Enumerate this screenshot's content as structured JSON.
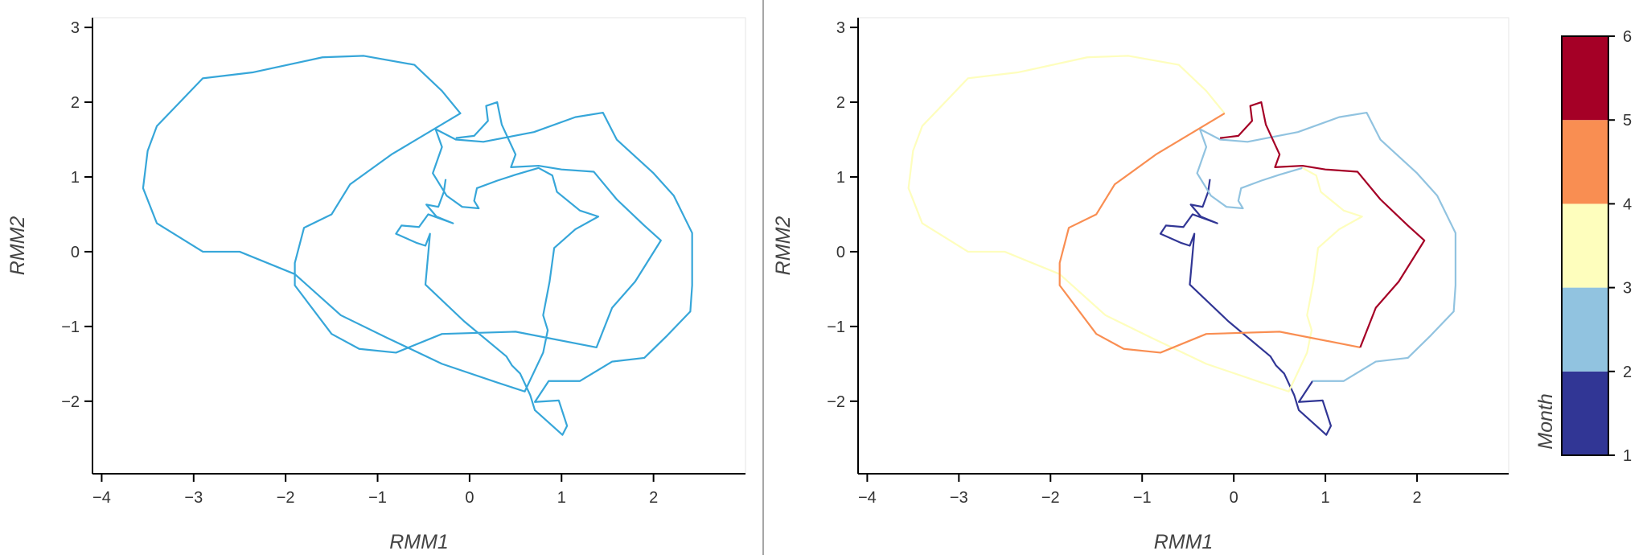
{
  "chart_data": [
    {
      "type": "line",
      "xlabel": "RMM1",
      "ylabel": "RMM2",
      "xlim": [
        -4.1,
        3.0
      ],
      "ylim": [
        -2.97,
        3.13
      ],
      "xticks": [
        {
          "value": -4,
          "label": "−4"
        },
        {
          "value": -3,
          "label": "−3"
        },
        {
          "value": -2,
          "label": "−2"
        },
        {
          "value": -1,
          "label": "−1"
        },
        0,
        1,
        2
      ],
      "yticks": [
        {
          "value": -2,
          "label": "−2"
        },
        {
          "value": -1,
          "label": "−1"
        },
        0,
        1,
        2,
        3
      ],
      "series": [
        {
          "color": "#36a6d9",
          "x": [
            -0.26,
            -0.28,
            -0.34,
            -0.47,
            -0.36,
            -0.18,
            -0.45,
            -0.55,
            -0.74,
            -0.8,
            -0.58,
            -0.48,
            -0.43,
            -0.48,
            -0.06,
            0.4,
            0.46,
            0.55,
            0.66,
            0.71,
            1.01,
            1.06,
            0.97,
            0.71,
            0.86,
            1.2,
            1.55,
            1.9,
            2.15,
            2.4,
            2.42,
            2.42,
            2.22,
            2.0,
            1.6,
            1.45,
            1.15,
            0.7,
            0.15,
            -0.15,
            -0.37,
            -0.3,
            -0.4,
            -0.25,
            -0.08,
            0.1,
            0.05,
            0.08,
            0.3,
            0.5,
            0.75,
            0.9,
            0.95,
            1.2,
            1.4,
            1.15,
            0.92,
            0.87,
            0.8,
            0.85,
            0.8,
            0.6,
            0.3,
            -0.3,
            -0.9,
            -1.4,
            -1.9,
            -2.5,
            -2.9,
            -3.4,
            -3.55,
            -3.5,
            -3.4,
            -2.9,
            -2.35,
            -1.6,
            -1.15,
            -0.6,
            -0.3,
            -0.1,
            -0.85,
            -1.3,
            -1.5,
            -1.8,
            -1.9,
            -1.9,
            -1.5,
            -1.2,
            -0.8,
            -0.3,
            0.5,
            1.38,
            1.55,
            1.8,
            2.08,
            1.9,
            1.6,
            1.35,
            1.0,
            0.75,
            0.45,
            0.5,
            0.35,
            0.3,
            0.18,
            0.2,
            0.05,
            -0.15
          ],
          "values": [
            0.97,
            0.8,
            0.6,
            0.63,
            0.47,
            0.38,
            0.5,
            0.33,
            0.35,
            0.24,
            0.12,
            0.08,
            0.24,
            -0.44,
            -0.93,
            -1.4,
            -1.52,
            -1.63,
            -1.92,
            -2.12,
            -2.45,
            -2.33,
            -1.99,
            -2.01,
            -1.73,
            -1.73,
            -1.47,
            -1.42,
            -1.12,
            -0.8,
            -0.45,
            0.25,
            0.75,
            1.05,
            1.5,
            1.86,
            1.8,
            1.6,
            1.47,
            1.5,
            1.64,
            1.4,
            1.05,
            0.75,
            0.6,
            0.58,
            0.68,
            0.85,
            0.95,
            1.03,
            1.12,
            1.02,
            0.8,
            0.55,
            0.47,
            0.3,
            0.05,
            -0.4,
            -0.85,
            -1.05,
            -1.35,
            -1.87,
            -1.75,
            -1.5,
            -1.15,
            -0.85,
            -0.3,
            0.0,
            0.0,
            0.38,
            0.85,
            1.35,
            1.68,
            2.32,
            2.4,
            2.6,
            2.62,
            2.5,
            2.15,
            1.85,
            1.3,
            0.9,
            0.5,
            0.32,
            -0.15,
            -0.45,
            -1.1,
            -1.3,
            -1.35,
            -1.1,
            -1.07,
            -1.28,
            -0.75,
            -0.4,
            0.15,
            0.35,
            0.7,
            1.07,
            1.1,
            1.15,
            1.13,
            1.3,
            1.7,
            2.0,
            1.95,
            1.75,
            1.55,
            1.52
          ]
        }
      ]
    },
    {
      "type": "line",
      "xlabel": "RMM1",
      "ylabel": "RMM2",
      "xlim": [
        -4.1,
        3.0
      ],
      "ylim": [
        -2.97,
        3.13
      ],
      "xticks": [
        {
          "value": -4,
          "label": "−4"
        },
        {
          "value": -3,
          "label": "−3"
        },
        {
          "value": -2,
          "label": "−2"
        },
        {
          "value": -1,
          "label": "−1"
        },
        0,
        1,
        2
      ],
      "yticks": [
        {
          "value": -2,
          "label": "−2"
        },
        {
          "value": -1,
          "label": "−1"
        },
        0,
        1,
        2,
        3
      ],
      "series": [
        {
          "color": "#313695",
          "x": [
            -0.26,
            -0.28,
            -0.34,
            -0.47,
            -0.36,
            -0.18,
            -0.45,
            -0.55,
            -0.74,
            -0.8,
            -0.58,
            -0.48,
            -0.43,
            -0.48,
            -0.06,
            0.4,
            0.46,
            0.55,
            0.66,
            0.71,
            1.01,
            1.06,
            0.97,
            0.71,
            0.86
          ],
          "values": [
            0.97,
            0.8,
            0.6,
            0.63,
            0.47,
            0.38,
            0.5,
            0.33,
            0.35,
            0.24,
            0.12,
            0.08,
            0.24,
            -0.44,
            -0.93,
            -1.4,
            -1.52,
            -1.63,
            -1.92,
            -2.12,
            -2.45,
            -2.33,
            -1.99,
            -2.01,
            -1.73
          ]
        },
        {
          "color": "#91c3e0",
          "x": [
            0.86,
            1.2,
            1.55,
            1.9,
            2.15,
            2.4,
            2.42,
            2.42,
            2.22,
            2.0,
            1.6,
            1.45,
            1.15,
            0.7,
            0.15,
            -0.15,
            -0.37,
            -0.3,
            -0.4,
            -0.25,
            -0.08,
            0.1,
            0.05,
            0.08,
            0.3,
            0.5,
            0.75
          ],
          "values": [
            -1.73,
            -1.73,
            -1.47,
            -1.42,
            -1.12,
            -0.8,
            -0.45,
            0.25,
            0.75,
            1.05,
            1.5,
            1.86,
            1.8,
            1.6,
            1.47,
            1.5,
            1.64,
            1.4,
            1.05,
            0.75,
            0.6,
            0.58,
            0.68,
            0.85,
            0.95,
            1.03,
            1.12
          ]
        },
        {
          "color": "#fefebd",
          "x": [
            0.75,
            0.9,
            0.95,
            1.2,
            1.4,
            1.15,
            0.92,
            0.87,
            0.8,
            0.85,
            0.8,
            0.6,
            0.3,
            -0.3,
            -0.9,
            -1.4,
            -1.9,
            -2.5,
            -2.9,
            -3.4,
            -3.55,
            -3.5,
            -3.4,
            -2.9,
            -2.35,
            -1.6,
            -1.15,
            -0.6,
            -0.3,
            -0.1
          ],
          "values": [
            1.12,
            1.02,
            0.8,
            0.55,
            0.47,
            0.3,
            0.05,
            -0.4,
            -0.85,
            -1.05,
            -1.35,
            -1.87,
            -1.75,
            -1.5,
            -1.15,
            -0.85,
            -0.3,
            0.0,
            0.0,
            0.38,
            0.85,
            1.35,
            1.68,
            2.32,
            2.4,
            2.6,
            2.62,
            2.5,
            2.15,
            1.85
          ]
        },
        {
          "color": "#f98e52",
          "x": [
            -0.1,
            -0.85,
            -1.3,
            -1.5,
            -1.8,
            -1.9,
            -1.9,
            -1.5,
            -1.2,
            -0.8,
            -0.3,
            0.5,
            1.38
          ],
          "values": [
            1.85,
            1.3,
            0.9,
            0.5,
            0.32,
            -0.15,
            -0.45,
            -1.1,
            -1.3,
            -1.35,
            -1.1,
            -1.07,
            -1.28
          ]
        },
        {
          "color": "#a50026",
          "x": [
            1.38,
            1.55,
            1.8,
            2.08,
            1.9,
            1.6,
            1.35,
            1.0,
            0.75,
            0.45,
            0.5,
            0.35,
            0.3,
            0.18,
            0.2,
            0.05,
            -0.15
          ],
          "values": [
            -1.28,
            -0.75,
            -0.4,
            0.15,
            0.35,
            0.7,
            1.07,
            1.1,
            1.15,
            1.13,
            1.3,
            1.7,
            2.0,
            1.95,
            1.75,
            1.55,
            1.52
          ]
        }
      ],
      "colorbar": {
        "label": "Month",
        "lim": [
          1,
          6
        ],
        "ticks": [
          1,
          2,
          3,
          4,
          5,
          6
        ],
        "colors": [
          "#313695",
          "#91c3e0",
          "#fefebd",
          "#f98e52",
          "#a50026"
        ]
      }
    }
  ]
}
